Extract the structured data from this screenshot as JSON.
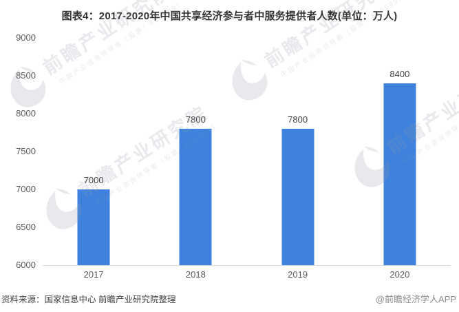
{
  "title": "图表4：2017-2020年中国共享经济参与者中服务提供者人数(单位：万人)",
  "chart_data": {
    "type": "bar",
    "categories": [
      "2017",
      "2018",
      "2019",
      "2020"
    ],
    "values": [
      7000,
      7800,
      7800,
      8400
    ],
    "title": "图表4：2017-2020年中国共享经济参与者中服务提供者人数(单位：万人)",
    "xlabel": "",
    "ylabel": "",
    "unit": "万人",
    "ylim": [
      6000,
      9000
    ],
    "ytick_step": 500,
    "yticks": [
      6000,
      6500,
      7000,
      7500,
      8000,
      8500,
      9000
    ],
    "grid": false,
    "legend": false,
    "bar_color": "#3f82de"
  },
  "footer": {
    "source": "资料来源：国家信息中心 前瞻产业研究院整理",
    "credit": "@前瞻经济学人APP"
  },
  "watermark": {
    "brand": "前瞻产业研究院",
    "tagline": "中国产业咨询领导者（股票：839599）"
  },
  "colors": {
    "bar": "#3f82de",
    "axis_line": "#d9d9d9",
    "tick_label": "#595959",
    "value_label": "#404040",
    "title": "#333333",
    "source_text": "#404040",
    "credit_text": "#8c8c8c",
    "watermark": "#8d96a3"
  }
}
